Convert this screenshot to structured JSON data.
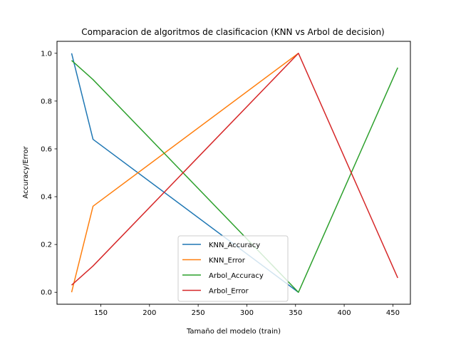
{
  "chart_data": {
    "type": "line",
    "title": "Comparacion de algoritmos de clasificacion (KNN vs Arbol de decision)",
    "xlabel": "Tamaño del modelo (train)",
    "ylabel": "Accuracy/Error",
    "xlim": [
      105,
      468
    ],
    "ylim": [
      -0.05,
      1.05
    ],
    "xticks": [
      150,
      200,
      250,
      300,
      350,
      400,
      450
    ],
    "yticks": [
      0.0,
      0.2,
      0.4,
      0.6,
      0.8,
      1.0
    ],
    "legend_position": "lower center",
    "series": [
      {
        "name": "KNN_Accuracy",
        "color": "#1f77b4",
        "x": [
          120,
          142,
          353
        ],
        "y": [
          1.0,
          0.64,
          0.0
        ]
      },
      {
        "name": "KNN_Error",
        "color": "#ff7f0e",
        "x": [
          120,
          142,
          353
        ],
        "y": [
          0.0,
          0.36,
          1.0
        ]
      },
      {
        "name": "Arbol_Accuracy",
        "color": "#2ca02c",
        "x": [
          120,
          142,
          353,
          455
        ],
        "y": [
          0.97,
          0.89,
          0.0,
          0.94
        ]
      },
      {
        "name": "Arbol_Error",
        "color": "#d62728",
        "x": [
          120,
          142,
          353,
          455
        ],
        "y": [
          0.03,
          0.11,
          1.0,
          0.06
        ]
      }
    ]
  }
}
